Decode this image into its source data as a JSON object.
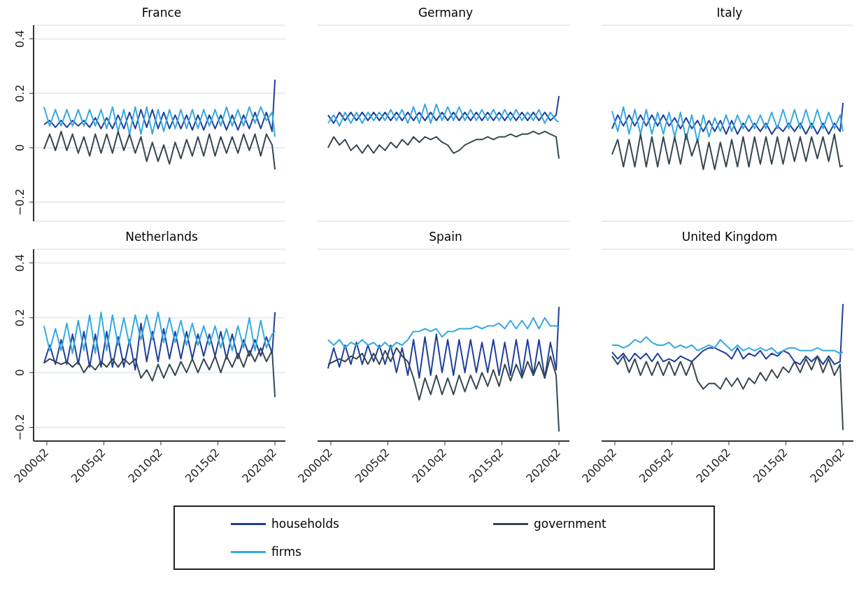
{
  "chart_data": [
    {
      "type": "line",
      "title": "France",
      "tick_labels": "y",
      "grid": "y",
      "xlim": [
        "1999-02",
        "2021-03"
      ],
      "ylim": [
        -0.27,
        0.45
      ],
      "yticks": [
        {
          "value": -0.2,
          "label": "−0.2"
        },
        0,
        0.2,
        0.4
      ],
      "x": [
        "2000-01",
        "2000-07",
        "2001-01",
        "2001-07",
        "2002-01",
        "2002-07",
        "2003-01",
        "2003-07",
        "2004-01",
        "2004-07",
        "2005-01",
        "2005-07",
        "2006-01",
        "2006-07",
        "2007-01",
        "2007-07",
        "2008-01",
        "2008-07",
        "2009-01",
        "2009-07",
        "2010-01",
        "2010-07",
        "2011-01",
        "2011-07",
        "2012-01",
        "2012-07",
        "2013-01",
        "2013-07",
        "2014-01",
        "2014-07",
        "2015-01",
        "2015-07",
        "2016-01",
        "2016-07",
        "2017-01",
        "2017-07",
        "2018-01",
        "2018-07",
        "2019-01",
        "2019-07",
        "2020-01",
        "2020-04"
      ],
      "series": [
        {
          "color": "#1f3f99",
          "values": [
            0.085,
            0.1,
            0.075,
            0.1,
            0.075,
            0.1,
            0.08,
            0.1,
            0.075,
            0.11,
            0.07,
            0.11,
            0.07,
            0.12,
            0.07,
            0.13,
            0.07,
            0.14,
            0.075,
            0.14,
            0.07,
            0.13,
            0.07,
            0.12,
            0.07,
            0.12,
            0.065,
            0.12,
            0.065,
            0.12,
            0.07,
            0.12,
            0.065,
            0.12,
            0.065,
            0.12,
            0.07,
            0.13,
            0.07,
            0.13,
            0.06,
            0.25
          ]
        },
        {
          "color": "#36a9e1",
          "values": [
            0.15,
            0.08,
            0.14,
            0.08,
            0.14,
            0.08,
            0.14,
            0.08,
            0.14,
            0.08,
            0.14,
            0.07,
            0.15,
            0.06,
            0.14,
            0.05,
            0.15,
            0.05,
            0.15,
            0.05,
            0.14,
            0.06,
            0.14,
            0.07,
            0.14,
            0.07,
            0.14,
            0.07,
            0.14,
            0.08,
            0.14,
            0.08,
            0.15,
            0.08,
            0.14,
            0.08,
            0.15,
            0.09,
            0.15,
            0.1,
            0.13,
            0.04
          ]
        },
        {
          "color": "#37474f",
          "values": [
            -0.005,
            0.05,
            -0.01,
            0.06,
            -0.01,
            0.05,
            -0.02,
            0.04,
            -0.03,
            0.05,
            -0.02,
            0.05,
            -0.02,
            0.06,
            -0.01,
            0.05,
            -0.02,
            0.04,
            -0.05,
            0.02,
            -0.05,
            0.01,
            -0.06,
            0.02,
            -0.04,
            0.03,
            -0.03,
            0.04,
            -0.03,
            0.05,
            -0.03,
            0.04,
            -0.02,
            0.04,
            -0.02,
            0.05,
            -0.01,
            0.05,
            -0.03,
            0.05,
            0.01,
            -0.08
          ]
        }
      ]
    },
    {
      "type": "line",
      "title": "Germany",
      "tick_labels": false,
      "grid": "y",
      "xlim": [
        "1999-02",
        "2021-03"
      ],
      "ylim": [
        -0.27,
        0.45
      ],
      "yticks": [
        -0.2,
        0,
        0.2,
        0.4
      ],
      "x": [
        "2000-01",
        "2000-07",
        "2001-01",
        "2001-07",
        "2002-01",
        "2002-07",
        "2003-01",
        "2003-07",
        "2004-01",
        "2004-07",
        "2005-01",
        "2005-07",
        "2006-01",
        "2006-07",
        "2007-01",
        "2007-07",
        "2008-01",
        "2008-07",
        "2009-01",
        "2009-07",
        "2010-01",
        "2010-07",
        "2011-01",
        "2011-07",
        "2012-01",
        "2012-07",
        "2013-01",
        "2013-07",
        "2014-01",
        "2014-07",
        "2015-01",
        "2015-07",
        "2016-01",
        "2016-07",
        "2017-01",
        "2017-07",
        "2018-01",
        "2018-07",
        "2019-01",
        "2019-07",
        "2020-01",
        "2020-04"
      ],
      "series": [
        {
          "color": "#1f3f99",
          "values": [
            0.12,
            0.09,
            0.13,
            0.1,
            0.13,
            0.1,
            0.13,
            0.1,
            0.13,
            0.1,
            0.13,
            0.1,
            0.13,
            0.1,
            0.13,
            0.1,
            0.13,
            0.1,
            0.13,
            0.1,
            0.13,
            0.1,
            0.13,
            0.1,
            0.13,
            0.1,
            0.13,
            0.1,
            0.13,
            0.1,
            0.13,
            0.1,
            0.13,
            0.1,
            0.13,
            0.1,
            0.13,
            0.1,
            0.13,
            0.1,
            0.12,
            0.19
          ]
        },
        {
          "color": "#36a9e1",
          "values": [
            0.09,
            0.12,
            0.08,
            0.13,
            0.09,
            0.13,
            0.09,
            0.13,
            0.1,
            0.13,
            0.1,
            0.14,
            0.1,
            0.14,
            0.09,
            0.15,
            0.09,
            0.16,
            0.09,
            0.16,
            0.1,
            0.15,
            0.1,
            0.15,
            0.1,
            0.14,
            0.1,
            0.14,
            0.1,
            0.14,
            0.1,
            0.14,
            0.1,
            0.14,
            0.1,
            0.13,
            0.1,
            0.14,
            0.09,
            0.13,
            0.1,
            0.095
          ]
        },
        {
          "color": "#37474f",
          "values": [
            0.0,
            0.04,
            0.01,
            0.03,
            -0.01,
            0.01,
            -0.02,
            0.01,
            -0.02,
            0.01,
            -0.01,
            0.02,
            0.0,
            0.03,
            0.01,
            0.04,
            0.02,
            0.04,
            0.03,
            0.04,
            0.02,
            0.01,
            -0.02,
            -0.01,
            0.01,
            0.02,
            0.03,
            0.03,
            0.04,
            0.03,
            0.04,
            0.04,
            0.05,
            0.04,
            0.05,
            0.05,
            0.06,
            0.05,
            0.06,
            0.05,
            0.04,
            -0.04
          ]
        }
      ]
    },
    {
      "type": "line",
      "title": "Italy",
      "tick_labels": false,
      "grid": "y",
      "xlim": [
        "1999-02",
        "2021-03"
      ],
      "ylim": [
        -0.27,
        0.45
      ],
      "yticks": [
        -0.2,
        0,
        0.2,
        0.4
      ],
      "x": [
        "2000-01",
        "2000-07",
        "2001-01",
        "2001-07",
        "2002-01",
        "2002-07",
        "2003-01",
        "2003-07",
        "2004-01",
        "2004-07",
        "2005-01",
        "2005-07",
        "2006-01",
        "2006-07",
        "2007-01",
        "2007-07",
        "2008-01",
        "2008-07",
        "2009-01",
        "2009-07",
        "2010-01",
        "2010-07",
        "2011-01",
        "2011-07",
        "2012-01",
        "2012-07",
        "2013-01",
        "2013-07",
        "2014-01",
        "2014-07",
        "2015-01",
        "2015-07",
        "2016-01",
        "2016-07",
        "2017-01",
        "2017-07",
        "2018-01",
        "2018-07",
        "2019-01",
        "2019-07",
        "2020-01",
        "2020-04"
      ],
      "series": [
        {
          "color": "#1f3f99",
          "values": [
            0.07,
            0.12,
            0.08,
            0.12,
            0.08,
            0.12,
            0.08,
            0.12,
            0.08,
            0.12,
            0.08,
            0.11,
            0.07,
            0.11,
            0.07,
            0.1,
            0.06,
            0.1,
            0.06,
            0.1,
            0.05,
            0.1,
            0.05,
            0.09,
            0.06,
            0.09,
            0.06,
            0.09,
            0.05,
            0.08,
            0.06,
            0.09,
            0.06,
            0.09,
            0.05,
            0.09,
            0.05,
            0.09,
            0.05,
            0.09,
            0.06,
            0.165
          ]
        },
        {
          "color": "#36a9e1",
          "values": [
            0.135,
            0.06,
            0.15,
            0.05,
            0.14,
            0.05,
            0.14,
            0.05,
            0.13,
            0.05,
            0.13,
            0.04,
            0.13,
            0.03,
            0.12,
            0.02,
            0.12,
            0.04,
            0.11,
            0.06,
            0.12,
            0.06,
            0.12,
            0.07,
            0.12,
            0.07,
            0.12,
            0.07,
            0.13,
            0.07,
            0.14,
            0.07,
            0.14,
            0.07,
            0.14,
            0.07,
            0.14,
            0.07,
            0.13,
            0.07,
            0.12,
            0.06
          ]
        },
        {
          "color": "#37474f",
          "values": [
            -0.025,
            0.03,
            -0.07,
            0.03,
            -0.07,
            0.05,
            -0.07,
            0.04,
            -0.07,
            0.04,
            -0.06,
            0.04,
            -0.06,
            0.05,
            -0.03,
            0.03,
            -0.08,
            0.02,
            -0.08,
            0.02,
            -0.07,
            0.03,
            -0.07,
            0.04,
            -0.07,
            0.04,
            -0.06,
            0.04,
            -0.06,
            0.04,
            -0.06,
            0.04,
            -0.05,
            0.04,
            -0.05,
            0.04,
            -0.04,
            0.04,
            -0.05,
            0.05,
            -0.07,
            -0.065
          ]
        }
      ]
    },
    {
      "type": "line",
      "title": "Netherlands",
      "grid": "y",
      "xlim": [
        "1999-02",
        "2021-03"
      ],
      "ylim": [
        -0.25,
        0.45
      ],
      "yticks": [
        {
          "value": -0.2,
          "label": "−0.2"
        },
        0,
        0.2,
        0.4
      ],
      "xticks": [
        {
          "value": "2000-04",
          "label": "2000q2"
        },
        {
          "value": "2005-04",
          "label": "2005q2"
        },
        {
          "value": "2010-04",
          "label": "2010q2"
        },
        {
          "value": "2015-04",
          "label": "2015q2"
        },
        {
          "value": "2020-04",
          "label": "2020q2"
        }
      ],
      "x": [
        "2000-01",
        "2000-07",
        "2001-01",
        "2001-07",
        "2002-01",
        "2002-07",
        "2003-01",
        "2003-07",
        "2004-01",
        "2004-07",
        "2005-01",
        "2005-07",
        "2006-01",
        "2006-07",
        "2007-01",
        "2007-07",
        "2008-01",
        "2008-07",
        "2009-01",
        "2009-07",
        "2010-01",
        "2010-07",
        "2011-01",
        "2011-07",
        "2012-01",
        "2012-07",
        "2013-01",
        "2013-07",
        "2014-01",
        "2014-07",
        "2015-01",
        "2015-07",
        "2016-01",
        "2016-07",
        "2017-01",
        "2017-07",
        "2018-01",
        "2018-07",
        "2019-01",
        "2019-07",
        "2020-01",
        "2020-04"
      ],
      "series": [
        {
          "color": "#1f3f99",
          "values": [
            0.035,
            0.1,
            0.03,
            0.12,
            0.03,
            0.14,
            0.03,
            0.15,
            0.02,
            0.14,
            0.02,
            0.15,
            0.02,
            0.13,
            0.02,
            0.12,
            0.01,
            0.18,
            0.04,
            0.15,
            0.04,
            0.16,
            0.05,
            0.15,
            0.05,
            0.15,
            0.05,
            0.14,
            0.06,
            0.14,
            0.06,
            0.15,
            0.05,
            0.14,
            0.05,
            0.12,
            0.06,
            0.12,
            0.06,
            0.13,
            0.07,
            0.22
          ]
        },
        {
          "color": "#36a9e1",
          "values": [
            0.17,
            0.08,
            0.16,
            0.08,
            0.18,
            0.07,
            0.19,
            0.08,
            0.21,
            0.07,
            0.22,
            0.08,
            0.21,
            0.1,
            0.2,
            0.1,
            0.21,
            0.12,
            0.21,
            0.12,
            0.22,
            0.11,
            0.2,
            0.11,
            0.19,
            0.1,
            0.18,
            0.1,
            0.17,
            0.1,
            0.17,
            0.09,
            0.16,
            0.08,
            0.17,
            0.09,
            0.2,
            0.08,
            0.19,
            0.09,
            0.14,
            0.15
          ]
        },
        {
          "color": "#37474f",
          "values": [
            0.035,
            0.05,
            0.04,
            0.03,
            0.04,
            0.02,
            0.04,
            0.0,
            0.03,
            0.01,
            0.04,
            0.02,
            0.05,
            0.02,
            0.05,
            0.03,
            0.05,
            -0.02,
            0.01,
            -0.03,
            0.03,
            -0.02,
            0.03,
            -0.01,
            0.04,
            0.0,
            0.05,
            0.0,
            0.05,
            0.01,
            0.06,
            0.0,
            0.06,
            0.02,
            0.07,
            0.02,
            0.08,
            0.04,
            0.09,
            0.04,
            0.08,
            -0.09
          ]
        }
      ]
    },
    {
      "type": "line",
      "title": "Spain",
      "tick_labels": "x",
      "grid": "y",
      "xlim": [
        "1999-02",
        "2021-03"
      ],
      "ylim": [
        -0.25,
        0.45
      ],
      "yticks": [
        -0.2,
        0,
        0.2,
        0.4
      ],
      "xticks": [
        {
          "value": "2000-04",
          "label": "2000q2"
        },
        {
          "value": "2005-04",
          "label": "2005q2"
        },
        {
          "value": "2010-04",
          "label": "2010q2"
        },
        {
          "value": "2015-04",
          "label": "2015q2"
        },
        {
          "value": "2020-04",
          "label": "2020q2"
        }
      ],
      "x": [
        "2000-01",
        "2000-07",
        "2001-01",
        "2001-07",
        "2002-01",
        "2002-07",
        "2003-01",
        "2003-07",
        "2004-01",
        "2004-07",
        "2005-01",
        "2005-07",
        "2006-01",
        "2006-07",
        "2007-01",
        "2007-07",
        "2008-01",
        "2008-07",
        "2009-01",
        "2009-07",
        "2010-01",
        "2010-07",
        "2011-01",
        "2011-07",
        "2012-01",
        "2012-07",
        "2013-01",
        "2013-07",
        "2014-01",
        "2014-07",
        "2015-01",
        "2015-07",
        "2016-01",
        "2016-07",
        "2017-01",
        "2017-07",
        "2018-01",
        "2018-07",
        "2019-01",
        "2019-07",
        "2020-01",
        "2020-04"
      ],
      "series": [
        {
          "color": "#1f3f99",
          "values": [
            0.015,
            0.09,
            0.02,
            0.1,
            0.03,
            0.11,
            0.03,
            0.1,
            0.04,
            0.1,
            0.03,
            0.1,
            0.0,
            0.09,
            -0.01,
            0.12,
            -0.02,
            0.13,
            -0.01,
            0.14,
            0.0,
            0.12,
            -0.01,
            0.12,
            0.0,
            0.12,
            0.0,
            0.11,
            0.0,
            0.12,
            -0.01,
            0.11,
            -0.01,
            0.12,
            -0.01,
            0.12,
            -0.01,
            0.12,
            -0.02,
            0.11,
            0.01,
            0.24
          ]
        },
        {
          "color": "#36a9e1",
          "values": [
            0.12,
            0.1,
            0.12,
            0.09,
            0.11,
            0.1,
            0.12,
            0.1,
            0.11,
            0.09,
            0.11,
            0.09,
            0.11,
            0.1,
            0.12,
            0.15,
            0.15,
            0.16,
            0.15,
            0.16,
            0.13,
            0.15,
            0.15,
            0.16,
            0.16,
            0.16,
            0.17,
            0.16,
            0.17,
            0.17,
            0.18,
            0.16,
            0.19,
            0.16,
            0.19,
            0.16,
            0.2,
            0.16,
            0.2,
            0.17,
            0.17,
            0.165
          ]
        },
        {
          "color": "#37474f",
          "values": [
            0.03,
            0.04,
            0.05,
            0.04,
            0.06,
            0.05,
            0.07,
            0.03,
            0.07,
            0.03,
            0.08,
            0.04,
            0.09,
            0.06,
            0.04,
            -0.02,
            -0.1,
            -0.02,
            -0.08,
            -0.01,
            -0.08,
            -0.02,
            -0.08,
            -0.01,
            -0.07,
            -0.01,
            -0.06,
            0.0,
            -0.05,
            0.01,
            -0.05,
            0.03,
            -0.03,
            0.03,
            -0.02,
            0.04,
            -0.01,
            0.04,
            -0.02,
            0.06,
            -0.01,
            -0.215
          ]
        }
      ]
    },
    {
      "type": "line",
      "title": "United Kingdom",
      "tick_labels": "x",
      "grid": "y",
      "legend": "bottom",
      "xlim": [
        "1999-02",
        "2021-03"
      ],
      "ylim": [
        -0.25,
        0.45
      ],
      "yticks": [
        -0.2,
        0,
        0.2,
        0.4
      ],
      "xticks": [
        {
          "value": "2000-04",
          "label": "2000q2"
        },
        {
          "value": "2005-04",
          "label": "2005q2"
        },
        {
          "value": "2010-04",
          "label": "2010q2"
        },
        {
          "value": "2015-04",
          "label": "2015q2"
        },
        {
          "value": "2020-04",
          "label": "2020q2"
        }
      ],
      "x": [
        "2000-01",
        "2000-07",
        "2001-01",
        "2001-07",
        "2002-01",
        "2002-07",
        "2003-01",
        "2003-07",
        "2004-01",
        "2004-07",
        "2005-01",
        "2005-07",
        "2006-01",
        "2006-07",
        "2007-01",
        "2007-07",
        "2008-01",
        "2008-07",
        "2009-01",
        "2009-07",
        "2010-01",
        "2010-07",
        "2011-01",
        "2011-07",
        "2012-01",
        "2012-07",
        "2013-01",
        "2013-07",
        "2014-01",
        "2014-07",
        "2015-01",
        "2015-07",
        "2016-01",
        "2016-07",
        "2017-01",
        "2017-07",
        "2018-01",
        "2018-07",
        "2019-01",
        "2019-07",
        "2020-01",
        "2020-04"
      ],
      "series": [
        {
          "name": "households",
          "color": "#1f3f99",
          "values": [
            0.075,
            0.05,
            0.07,
            0.04,
            0.07,
            0.05,
            0.07,
            0.04,
            0.07,
            0.04,
            0.05,
            0.04,
            0.06,
            0.05,
            0.04,
            0.06,
            0.08,
            0.09,
            0.09,
            0.08,
            0.07,
            0.05,
            0.09,
            0.05,
            0.07,
            0.06,
            0.08,
            0.05,
            0.07,
            0.06,
            0.08,
            0.07,
            0.04,
            0.03,
            0.06,
            0.04,
            0.06,
            0.03,
            0.06,
            0.03,
            0.04,
            0.25
          ]
        },
        {
          "name": "firms",
          "color": "#36a9e1",
          "values": [
            0.1,
            0.1,
            0.09,
            0.1,
            0.12,
            0.11,
            0.13,
            0.11,
            0.1,
            0.1,
            0.11,
            0.09,
            0.1,
            0.09,
            0.1,
            0.08,
            0.09,
            0.1,
            0.09,
            0.12,
            0.1,
            0.08,
            0.1,
            0.08,
            0.09,
            0.08,
            0.09,
            0.08,
            0.09,
            0.07,
            0.08,
            0.09,
            0.09,
            0.08,
            0.08,
            0.08,
            0.09,
            0.08,
            0.08,
            0.08,
            0.07,
            0.075
          ]
        },
        {
          "name": "government",
          "color": "#37474f",
          "values": [
            0.06,
            0.03,
            0.06,
            0.0,
            0.05,
            -0.01,
            0.04,
            -0.01,
            0.04,
            -0.01,
            0.04,
            -0.01,
            0.04,
            -0.01,
            0.04,
            -0.03,
            -0.06,
            -0.04,
            -0.04,
            -0.06,
            -0.02,
            -0.05,
            -0.02,
            -0.06,
            -0.02,
            -0.04,
            0.0,
            -0.03,
            0.01,
            -0.02,
            0.02,
            0.0,
            0.04,
            0.0,
            0.05,
            0.01,
            0.06,
            0.0,
            0.05,
            -0.01,
            0.03,
            -0.21
          ]
        }
      ]
    }
  ]
}
